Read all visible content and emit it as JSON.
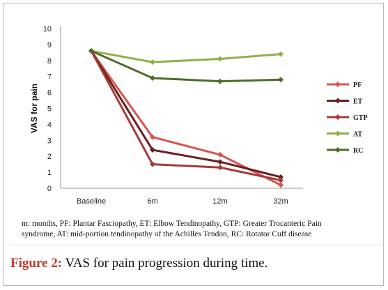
{
  "chart_data": {
    "type": "line",
    "categories": [
      "Baseline",
      "6m",
      "12m",
      "32m"
    ],
    "ylabel": "VAS for pain",
    "ylim": [
      0,
      10
    ],
    "yticks": [
      "0",
      "1",
      "2",
      "3",
      "4",
      "5",
      "6",
      "7",
      "8",
      "9",
      "10"
    ],
    "grid": false,
    "legend_position": "right",
    "series": [
      {
        "name": "PF",
        "color": "#d9534f",
        "values": [
          8.6,
          3.2,
          2.1,
          0.2
        ]
      },
      {
        "name": "ET",
        "color": "#6b1f1f",
        "values": [
          8.6,
          2.4,
          1.65,
          0.7
        ]
      },
      {
        "name": "GTP",
        "color": "#a63a3a",
        "values": [
          8.6,
          1.5,
          1.3,
          0.5
        ]
      },
      {
        "name": "AT",
        "color": "#8fb04a",
        "values": [
          8.6,
          7.9,
          8.1,
          8.4
        ]
      },
      {
        "name": "RC",
        "color": "#4f6b2a",
        "values": [
          8.6,
          6.9,
          6.7,
          6.8
        ]
      }
    ]
  },
  "footnote": {
    "line1": "m: months, PF: Plantar Fasciopathy, ET: Elbow Tendinopathy, GTP: Greater Trocanteric Pain",
    "line2": "syndrome, AT: mid-portion tendinopathy of the Achilles Tendon, RC: Rotator Cuff disease"
  },
  "caption": {
    "label": "Figure 2:",
    "text": " VAS for pain progression during time."
  }
}
